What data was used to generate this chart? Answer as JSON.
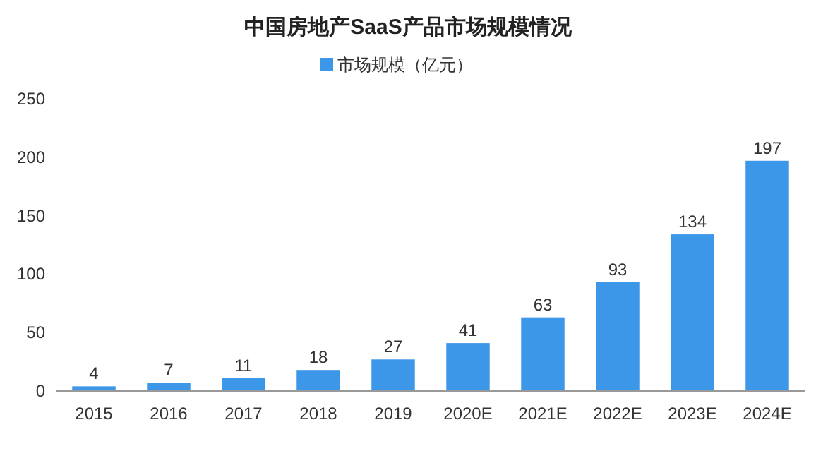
{
  "chart_data": {
    "type": "bar",
    "title": "中国房地产SaaS产品市场规模情况",
    "categories": [
      "2015",
      "2016",
      "2017",
      "2018",
      "2019",
      "2020E",
      "2021E",
      "2022E",
      "2023E",
      "2024E"
    ],
    "series": [
      {
        "name": "市场规模（亿元）",
        "color": "#3d97e8",
        "values": [
          4,
          7,
          11,
          18,
          27,
          41,
          63,
          93,
          134,
          197
        ]
      }
    ],
    "ylim": [
      0,
      250
    ],
    "yticks": [
      0,
      50,
      100,
      150,
      200,
      250
    ],
    "data_labels": true,
    "legend": "top",
    "grid": false
  }
}
